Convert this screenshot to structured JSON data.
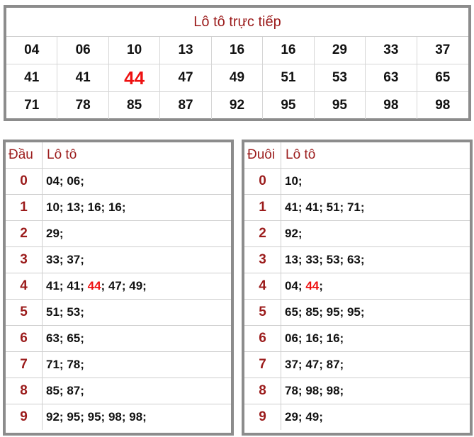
{
  "live": {
    "title": "Lô tô trực tiếp",
    "numbers": [
      "04",
      "06",
      "10",
      "13",
      "16",
      "16",
      "29",
      "33",
      "37",
      "41",
      "41",
      "44",
      "47",
      "49",
      "51",
      "53",
      "63",
      "65",
      "71",
      "78",
      "85",
      "87",
      "92",
      "95",
      "95",
      "98",
      "98"
    ],
    "highlight": "44"
  },
  "dau_table": {
    "head_col1": "Đầu",
    "head_col2": "Lô tô",
    "rows": [
      {
        "key": "0",
        "values": [
          "04",
          "06"
        ]
      },
      {
        "key": "1",
        "values": [
          "10",
          "13",
          "16",
          "16"
        ]
      },
      {
        "key": "2",
        "values": [
          "29"
        ]
      },
      {
        "key": "3",
        "values": [
          "33",
          "37"
        ]
      },
      {
        "key": "4",
        "values": [
          "41",
          "41",
          "44",
          "47",
          "49"
        ]
      },
      {
        "key": "5",
        "values": [
          "51",
          "53"
        ]
      },
      {
        "key": "6",
        "values": [
          "63",
          "65"
        ]
      },
      {
        "key": "7",
        "values": [
          "71",
          "78"
        ]
      },
      {
        "key": "8",
        "values": [
          "85",
          "87"
        ]
      },
      {
        "key": "9",
        "values": [
          "92",
          "95",
          "95",
          "98",
          "98"
        ]
      }
    ]
  },
  "duoi_table": {
    "head_col1": "Đuôi",
    "head_col2": "Lô tô",
    "rows": [
      {
        "key": "0",
        "values": [
          "10"
        ]
      },
      {
        "key": "1",
        "values": [
          "41",
          "41",
          "51",
          "71"
        ]
      },
      {
        "key": "2",
        "values": [
          "92"
        ]
      },
      {
        "key": "3",
        "values": [
          "13",
          "33",
          "53",
          "63"
        ]
      },
      {
        "key": "4",
        "values": [
          "04",
          "44"
        ]
      },
      {
        "key": "5",
        "values": [
          "65",
          "85",
          "95",
          "95"
        ]
      },
      {
        "key": "6",
        "values": [
          "06",
          "16",
          "16"
        ]
      },
      {
        "key": "7",
        "values": [
          "37",
          "47",
          "87"
        ]
      },
      {
        "key": "8",
        "values": [
          "78",
          "98",
          "98"
        ]
      },
      {
        "key": "9",
        "values": [
          "29",
          "49"
        ]
      }
    ]
  },
  "colors": {
    "accent": "#9b1b1b",
    "highlight": "#ee1111",
    "border": "#8c8c8c"
  }
}
